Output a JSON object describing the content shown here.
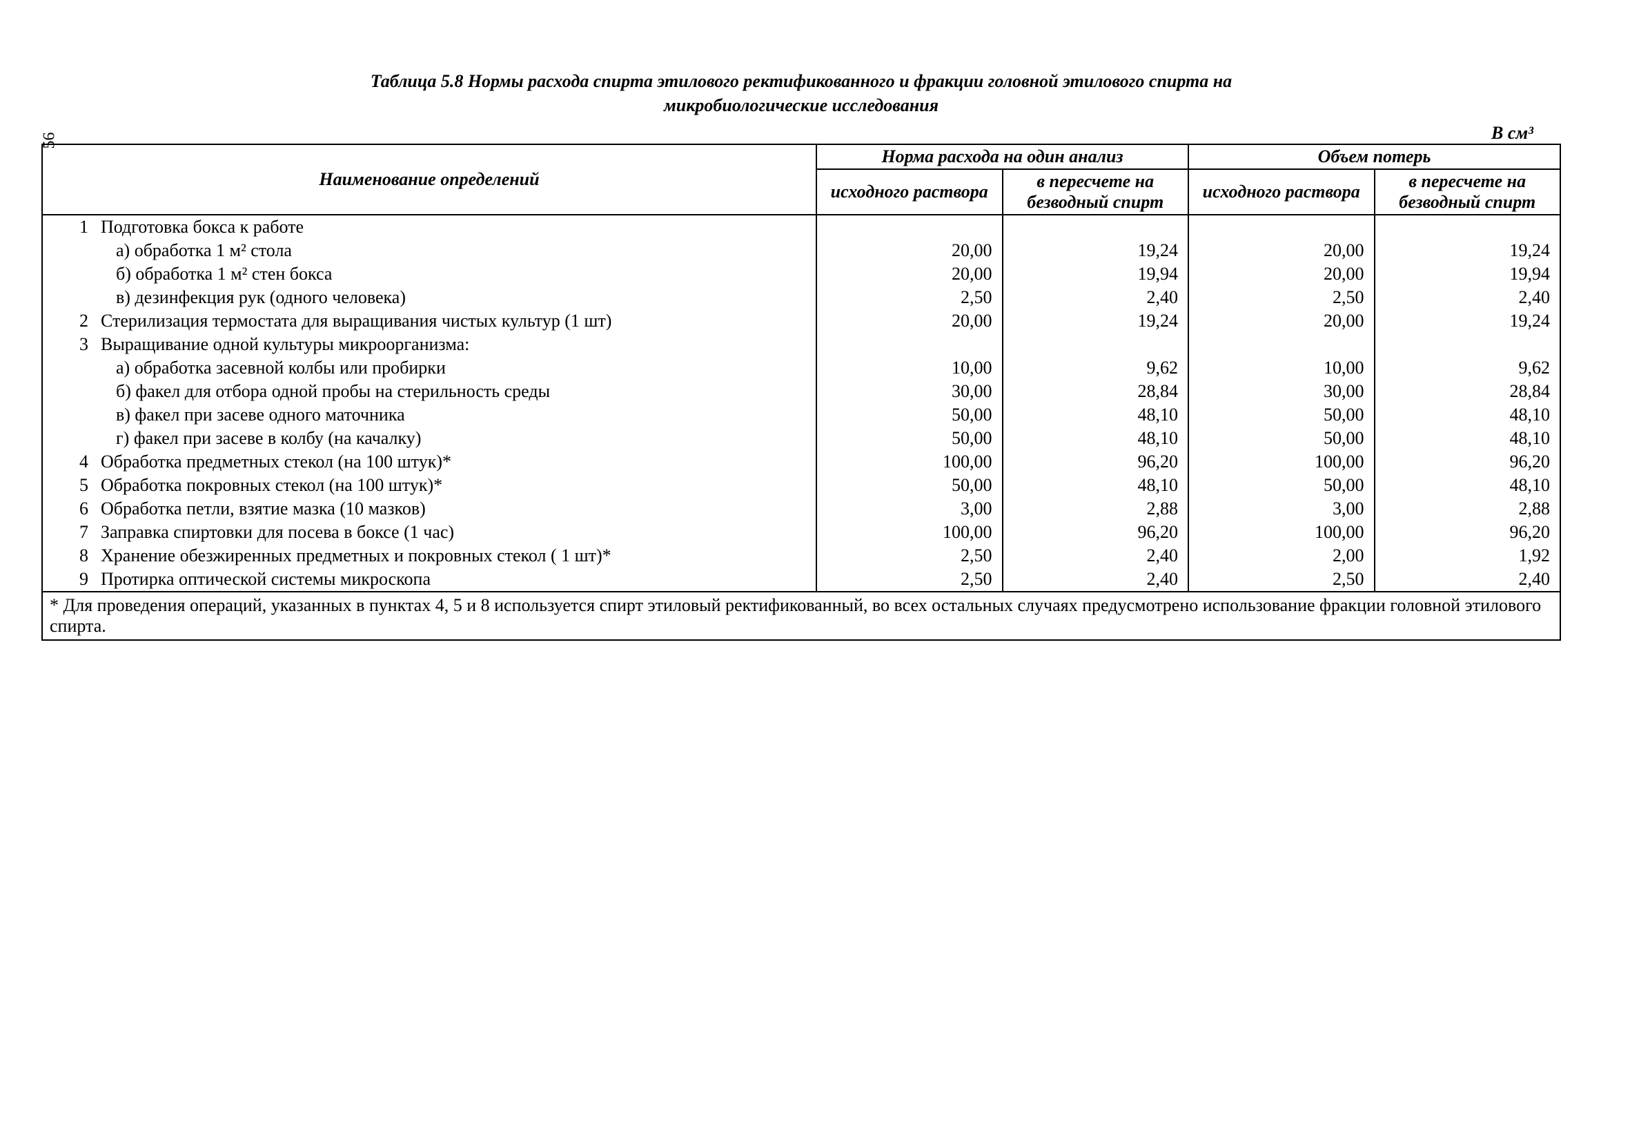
{
  "page_number": "56",
  "title_line1": "Таблица 5.8 Нормы расхода спирта этилового ректификованного и фракции головной этилового спирта на",
  "title_line2": "микробиологические исследования",
  "unit_label": "В см³",
  "header": {
    "name": "Наименование определений",
    "group1": "Норма расхода на один анализ",
    "group2": "Объем потерь",
    "sub1": "исходного раствора",
    "sub2": "в пересчете на безводный спирт",
    "sub3": "исходного раствора",
    "sub4": "в пересчете на безводный спирт"
  },
  "rows": [
    {
      "num": "1",
      "name": "Подготовка бокса к работе",
      "v1": "",
      "v2": "",
      "v3": "",
      "v4": "",
      "sub": false
    },
    {
      "num": "",
      "name": "а) обработка 1 м² стола",
      "v1": "20,00",
      "v2": "19,24",
      "v3": "20,00",
      "v4": "19,24",
      "sub": true
    },
    {
      "num": "",
      "name": "б) обработка 1 м² стен бокса",
      "v1": "20,00",
      "v2": "19,94",
      "v3": "20,00",
      "v4": "19,94",
      "sub": true
    },
    {
      "num": "",
      "name": "в) дезинфекция рук (одного человека)",
      "v1": "2,50",
      "v2": "2,40",
      "v3": "2,50",
      "v4": "2,40",
      "sub": true
    },
    {
      "num": "2",
      "name": "Стерилизация термостата для выращивания чистых культур (1 шт)",
      "v1": "20,00",
      "v2": "19,24",
      "v3": "20,00",
      "v4": "19,24",
      "sub": false
    },
    {
      "num": "3",
      "name": "Выращивание одной культуры микроорганизма:",
      "v1": "",
      "v2": "",
      "v3": "",
      "v4": "",
      "sub": false
    },
    {
      "num": "",
      "name": "а) обработка засевной колбы или пробирки",
      "v1": "10,00",
      "v2": "9,62",
      "v3": "10,00",
      "v4": "9,62",
      "sub": true
    },
    {
      "num": "",
      "name": "б) факел для отбора одной пробы на стерильность среды",
      "v1": "30,00",
      "v2": "28,84",
      "v3": "30,00",
      "v4": "28,84",
      "sub": true
    },
    {
      "num": "",
      "name": "в) факел при засеве одного маточника",
      "v1": "50,00",
      "v2": "48,10",
      "v3": "50,00",
      "v4": "48,10",
      "sub": true
    },
    {
      "num": "",
      "name": "г) факел при засеве в колбу (на качалку)",
      "v1": "50,00",
      "v2": "48,10",
      "v3": "50,00",
      "v4": "48,10",
      "sub": true
    },
    {
      "num": "4",
      "name": "Обработка предметных стекол (на 100 штук)*",
      "v1": "100,00",
      "v2": "96,20",
      "v3": "100,00",
      "v4": "96,20",
      "sub": false
    },
    {
      "num": "5",
      "name": "Обработка покровных стекол (на 100 штук)*",
      "v1": "50,00",
      "v2": "48,10",
      "v3": "50,00",
      "v4": "48,10",
      "sub": false
    },
    {
      "num": "6",
      "name": "Обработка петли, взятие мазка (10 мазков)",
      "v1": "3,00",
      "v2": "2,88",
      "v3": "3,00",
      "v4": "2,88",
      "sub": false
    },
    {
      "num": "7",
      "name": "Заправка спиртовки для посева в боксе (1 час)",
      "v1": "100,00",
      "v2": "96,20",
      "v3": "100,00",
      "v4": "96,20",
      "sub": false
    },
    {
      "num": "8",
      "name": "Хранение обезжиренных предметных и покровных стекол ( 1 шт)*",
      "v1": "2,50",
      "v2": "2,40",
      "v3": "2,00",
      "v4": "1,92",
      "sub": false
    },
    {
      "num": "9",
      "name": "Протирка оптической системы микроскопа",
      "v1": "2,50",
      "v2": "2,40",
      "v3": "2,50",
      "v4": "2,40",
      "sub": false
    }
  ],
  "footnote": "* Для проведения операций, указанных в пунктах 4, 5 и 8 используется спирт этиловый ректификованный, во всех остальных случаях предусмотрено использование фракции головной этилового спирта."
}
